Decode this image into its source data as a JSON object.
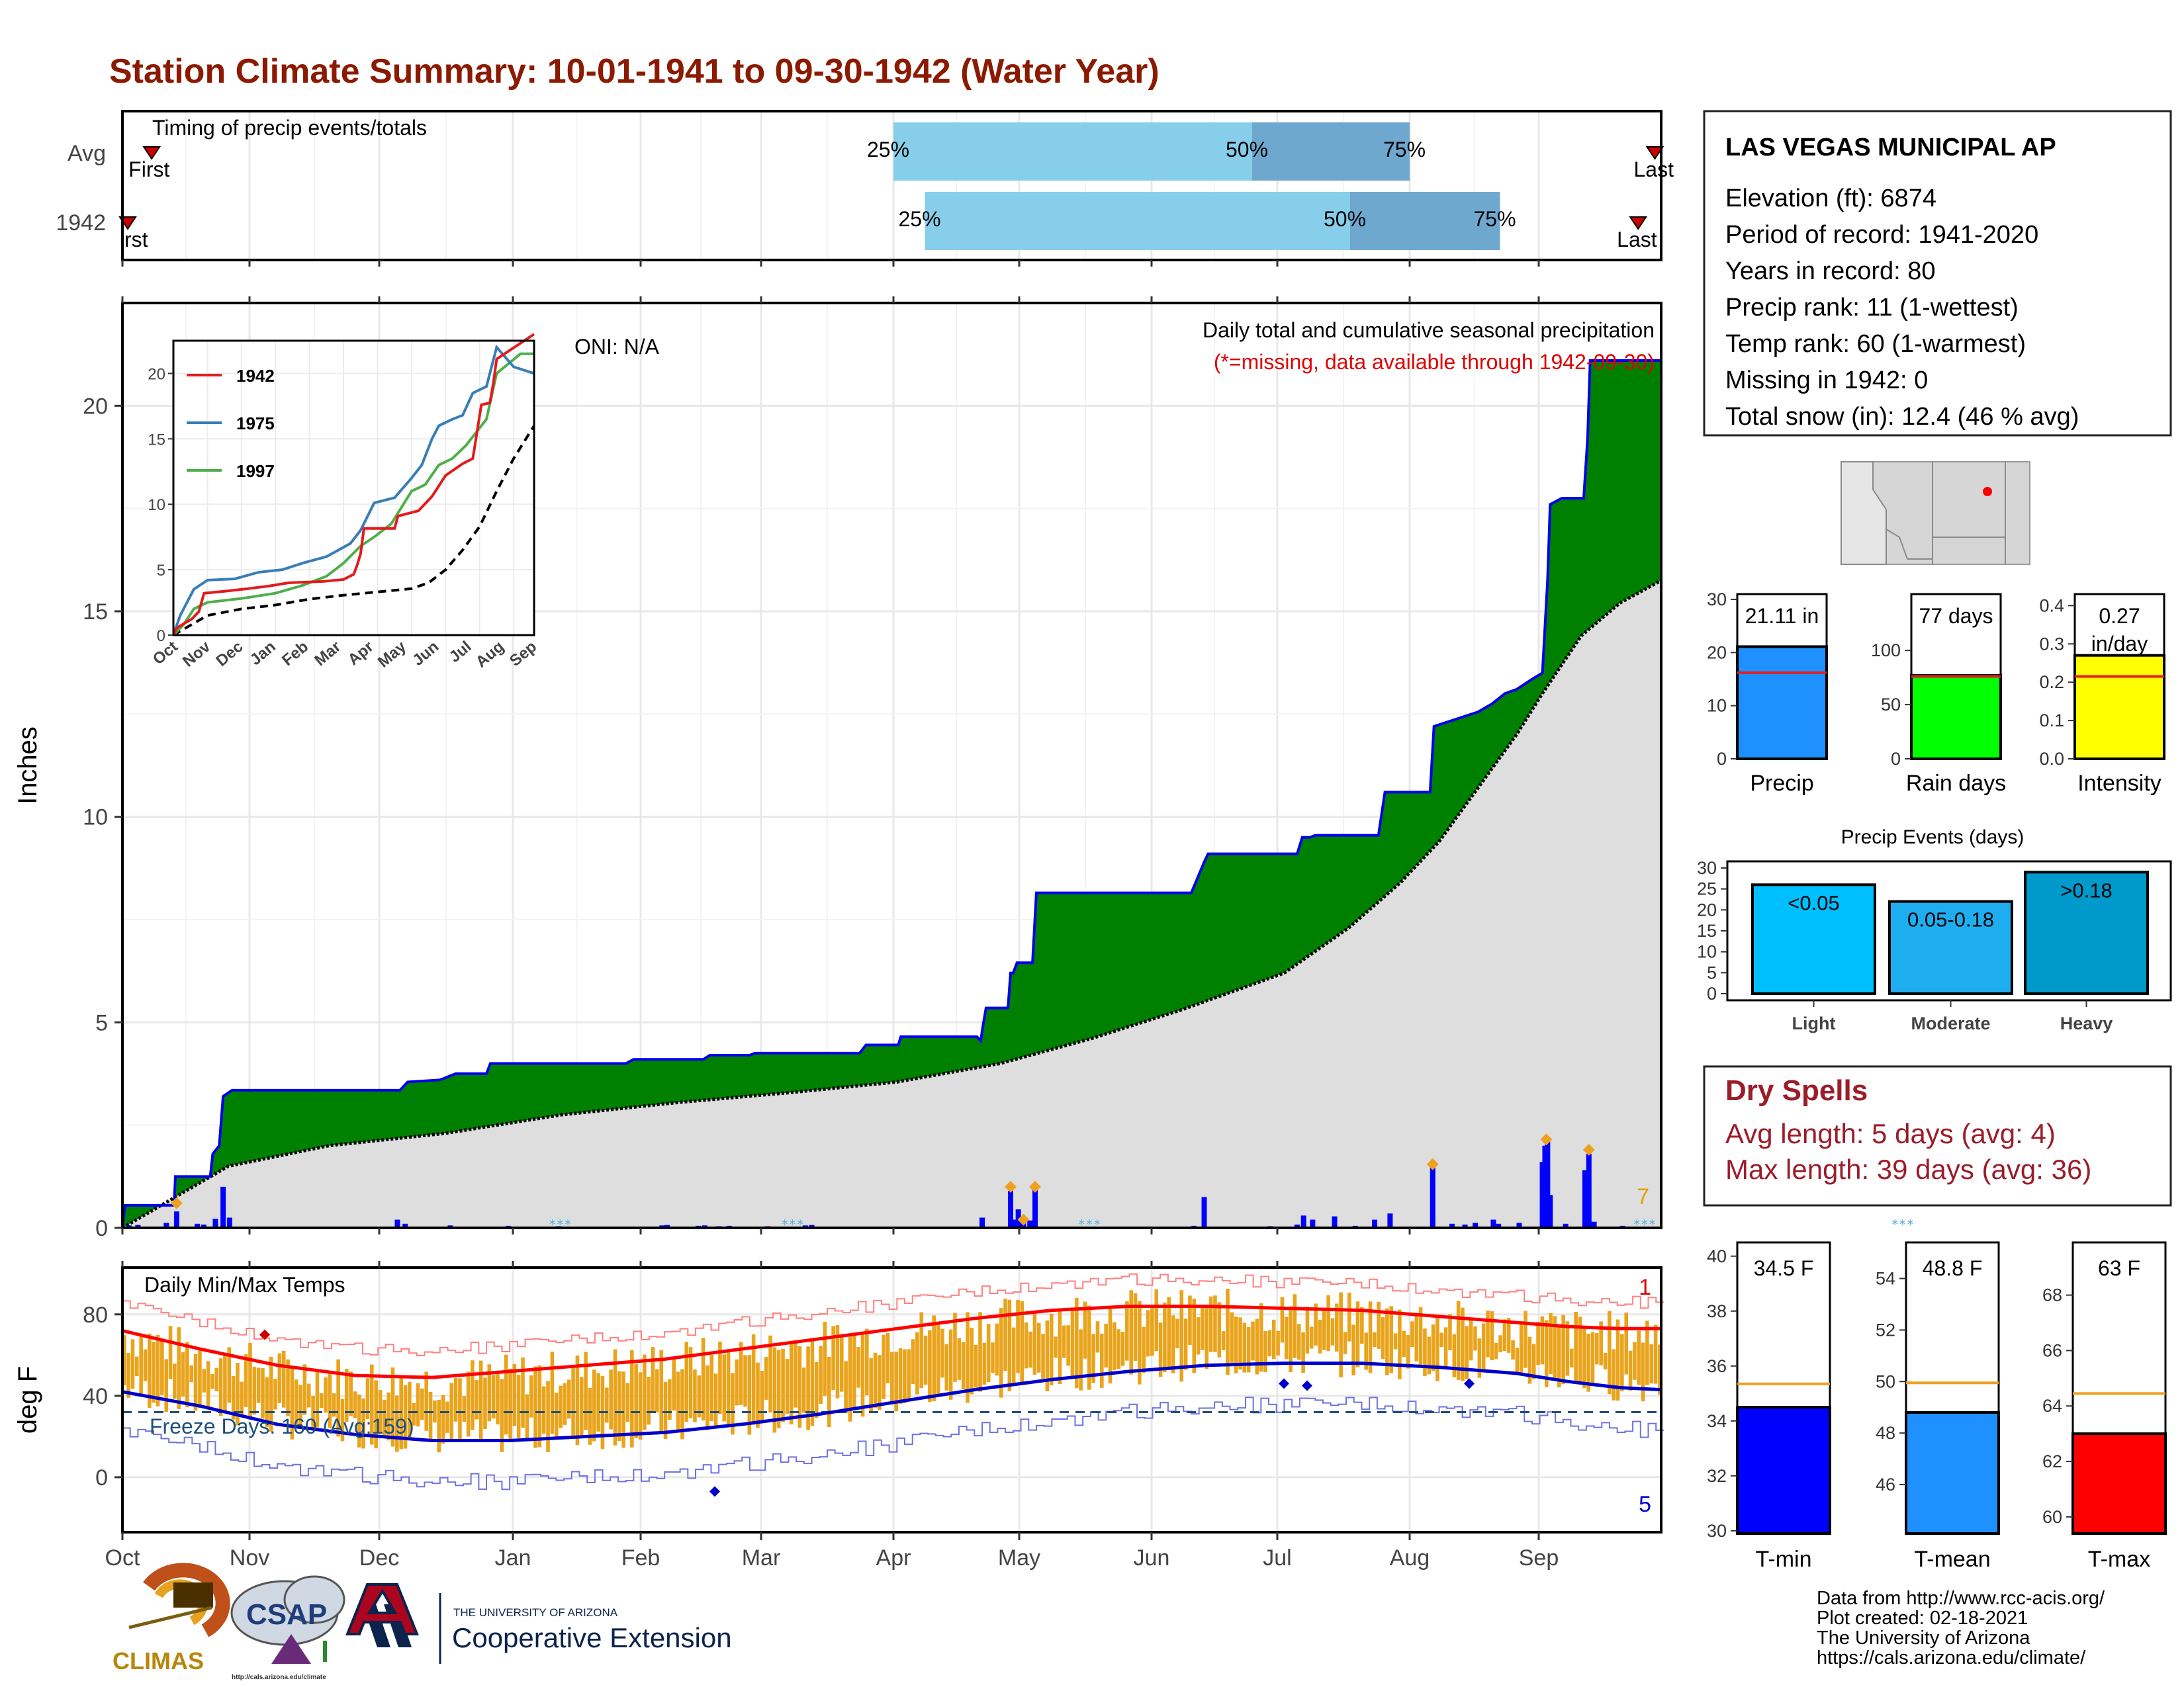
{
  "title": "Station Climate Summary: 10-01-1941 to 09-30-1942 (Water Year)",
  "colors": {
    "title": "#8b1a00",
    "accent_red": "#9b1d2a",
    "cum_fill": "#008000",
    "cum_line": "#0000ee",
    "avg_fill": "#dedede",
    "temp_bar": "#e9a41c",
    "tmax_line": "#ff0000",
    "tmin_line": "#0000cc",
    "timing_light": "#87ceeb",
    "timing_dark": "#6fa8cf"
  },
  "timing": {
    "title": "Timing of precip events/totals",
    "rows": [
      {
        "label": "Avg",
        "p25_month": 6.0,
        "p50_month": 8.8,
        "p75_month": 10.0,
        "first_month": 0.23,
        "last_month": 11.9
      },
      {
        "label": "1942",
        "p25_month": 6.25,
        "p50_month": 9.55,
        "p75_month": 10.7,
        "first_month": 0.0,
        "last_month": 11.77
      }
    ],
    "pct_labels": [
      "25%",
      "50%",
      "75%"
    ],
    "first_label": "First",
    "first_label_cut": "rst",
    "last_label": "Last"
  },
  "precip": {
    "ylabel": "Inches",
    "ylim": [
      0,
      22.5
    ],
    "yticks": [
      0,
      5,
      10,
      15,
      20
    ],
    "oni": "ONI: N/A",
    "desc1": "Daily total and cumulative seasonal precipitation",
    "desc2": "(*=missing, data available through 1942-09-30)",
    "count_label": "7",
    "cumulative_1942": [
      [
        0,
        0
      ],
      [
        2,
        0.55
      ],
      [
        40,
        0.55
      ],
      [
        41,
        1.25
      ],
      [
        68,
        1.25
      ],
      [
        70,
        1.8
      ],
      [
        75,
        2.0
      ],
      [
        78,
        3.2
      ],
      [
        85,
        3.35
      ],
      [
        215,
        3.35
      ],
      [
        221,
        3.55
      ],
      [
        246,
        3.6
      ],
      [
        258,
        3.75
      ],
      [
        282,
        3.75
      ],
      [
        285,
        4.0
      ],
      [
        390,
        4.0
      ],
      [
        396,
        4.1
      ],
      [
        399,
        4.1
      ],
      [
        450,
        4.1
      ],
      [
        455,
        4.2
      ],
      [
        486,
        4.2
      ],
      [
        490,
        4.25
      ],
      [
        571,
        4.25
      ],
      [
        576,
        4.45
      ],
      [
        601,
        4.45
      ],
      [
        603,
        4.65
      ],
      [
        662,
        4.65
      ],
      [
        665,
        4.55
      ],
      [
        666,
        4.8
      ],
      [
        669,
        5.35
      ],
      [
        686,
        5.35
      ],
      [
        688,
        6.2
      ],
      [
        690,
        6.2
      ],
      [
        693,
        6.45
      ],
      [
        705,
        6.45
      ],
      [
        708,
        8.15
      ],
      [
        828,
        8.15
      ],
      [
        838,
        8.9
      ],
      [
        841,
        9.1
      ],
      [
        910,
        9.1
      ],
      [
        914,
        9.5
      ],
      [
        920,
        9.5
      ],
      [
        924,
        9.55
      ],
      [
        973,
        9.55
      ],
      [
        978,
        10.6
      ],
      [
        1013,
        10.6
      ],
      [
        1016,
        12.2
      ],
      [
        1050,
        12.55
      ],
      [
        1061,
        12.75
      ],
      [
        1071,
        13.0
      ],
      [
        1080,
        13.1
      ],
      [
        1092,
        13.35
      ],
      [
        1100,
        13.5
      ],
      [
        1104,
        15.75
      ],
      [
        1106,
        17.6
      ],
      [
        1115,
        17.75
      ],
      [
        1132,
        17.75
      ],
      [
        1135,
        19.2
      ],
      [
        1137,
        21.1
      ],
      [
        1192,
        21.1
      ]
    ],
    "average_curve": [
      [
        0,
        0
      ],
      [
        82,
        1.5
      ],
      [
        160,
        2.0
      ],
      [
        250,
        2.3
      ],
      [
        340,
        2.75
      ],
      [
        430,
        3.05
      ],
      [
        520,
        3.3
      ],
      [
        600,
        3.55
      ],
      [
        680,
        4.0
      ],
      [
        750,
        4.6
      ],
      [
        820,
        5.3
      ],
      [
        900,
        6.2
      ],
      [
        950,
        7.3
      ],
      [
        990,
        8.4
      ],
      [
        1020,
        9.4
      ],
      [
        1050,
        10.7
      ],
      [
        1080,
        12.0
      ],
      [
        1100,
        13.0
      ],
      [
        1130,
        14.4
      ],
      [
        1160,
        15.2
      ],
      [
        1192,
        15.75
      ]
    ],
    "daily_bars": [
      [
        5,
        0.06
      ],
      [
        12,
        0.07
      ],
      [
        34,
        0.12
      ],
      [
        42,
        0.4
      ],
      [
        58,
        0.1
      ],
      [
        63,
        0.08
      ],
      [
        72,
        0.22
      ],
      [
        78,
        1.0
      ],
      [
        83,
        0.25
      ],
      [
        213,
        0.2
      ],
      [
        219,
        0.1
      ],
      [
        254,
        0.06
      ],
      [
        299,
        0.05
      ],
      [
        338,
        0.04
      ],
      [
        418,
        0.06
      ],
      [
        422,
        0.07
      ],
      [
        446,
        0.05
      ],
      [
        451,
        0.06
      ],
      [
        462,
        0.04
      ],
      [
        470,
        0.05
      ],
      [
        500,
        0.04
      ],
      [
        529,
        0.06
      ],
      [
        534,
        0.07
      ],
      [
        572,
        0.03
      ],
      [
        598,
        0.02
      ],
      [
        666,
        0.25
      ],
      [
        688,
        0.9
      ],
      [
        691,
        0.2
      ],
      [
        694,
        0.45
      ],
      [
        698,
        0.12
      ],
      [
        703,
        0.18
      ],
      [
        707,
        1.0
      ],
      [
        830,
        0.05
      ],
      [
        838,
        0.75
      ],
      [
        889,
        0.04
      ],
      [
        910,
        0.08
      ],
      [
        915,
        0.3
      ],
      [
        922,
        0.2
      ],
      [
        939,
        0.28
      ],
      [
        955,
        0.05
      ],
      [
        970,
        0.2
      ],
      [
        982,
        0.35
      ],
      [
        1015,
        1.5
      ],
      [
        1030,
        0.1
      ],
      [
        1040,
        0.08
      ],
      [
        1048,
        0.12
      ],
      [
        1062,
        0.2
      ],
      [
        1066,
        0.1
      ],
      [
        1082,
        0.12
      ],
      [
        1100,
        1.6
      ],
      [
        1102,
        2.0
      ],
      [
        1104,
        2.1
      ],
      [
        1106,
        0.8
      ],
      [
        1118,
        0.1
      ],
      [
        1133,
        1.4
      ],
      [
        1136,
        1.8
      ],
      [
        1140,
        0.15
      ],
      [
        1162,
        0.05
      ]
    ],
    "markers": [
      [
        42,
        0.6
      ],
      [
        688,
        1.0
      ],
      [
        698,
        0.2
      ],
      [
        707,
        1.0
      ],
      [
        1015,
        1.55
      ],
      [
        1103,
        2.15
      ],
      [
        1136,
        1.9
      ]
    ]
  },
  "inset": {
    "ylim": [
      0,
      22.5
    ],
    "yticks": [
      0,
      5,
      10,
      15,
      20
    ],
    "legend": [
      {
        "name": "1942",
        "color": "#e41a1c"
      },
      {
        "name": "1975",
        "color": "#377eb8"
      },
      {
        "name": "1997",
        "color": "#4daf4a"
      }
    ],
    "series": {
      "1942": [
        [
          0,
          0
        ],
        [
          0.1,
          0.55
        ],
        [
          0.55,
          1.25
        ],
        [
          0.75,
          1.8
        ],
        [
          0.9,
          3.2
        ],
        [
          1.5,
          3.35
        ],
        [
          2.2,
          3.55
        ],
        [
          2.8,
          3.75
        ],
        [
          3.4,
          4.0
        ],
        [
          4.4,
          4.1
        ],
        [
          5.0,
          4.25
        ],
        [
          5.3,
          4.65
        ],
        [
          5.4,
          5.35
        ],
        [
          5.5,
          6.2
        ],
        [
          5.6,
          8.15
        ],
        [
          6.5,
          8.15
        ],
        [
          6.6,
          9.1
        ],
        [
          7.2,
          9.5
        ],
        [
          7.6,
          10.6
        ],
        [
          8.0,
          12.2
        ],
        [
          8.5,
          13.1
        ],
        [
          8.8,
          13.5
        ],
        [
          9.05,
          17.6
        ],
        [
          9.3,
          17.75
        ],
        [
          9.4,
          19.2
        ],
        [
          9.5,
          21.1
        ],
        [
          10.6,
          23
        ]
      ],
      "1975": [
        [
          0,
          0
        ],
        [
          0.2,
          1.5
        ],
        [
          0.6,
          3.5
        ],
        [
          1.0,
          4.2
        ],
        [
          1.8,
          4.3
        ],
        [
          2.5,
          4.8
        ],
        [
          3.2,
          5.0
        ],
        [
          3.8,
          5.5
        ],
        [
          4.5,
          6.0
        ],
        [
          5.2,
          7.0
        ],
        [
          5.5,
          8.0
        ],
        [
          5.9,
          10.1
        ],
        [
          6.5,
          10.5
        ],
        [
          7.0,
          12.0
        ],
        [
          7.3,
          13.0
        ],
        [
          7.6,
          15.0
        ],
        [
          7.8,
          16.0
        ],
        [
          8.2,
          16.5
        ],
        [
          8.5,
          16.8
        ],
        [
          8.8,
          18.5
        ],
        [
          9.2,
          19.0
        ],
        [
          9.5,
          22.0
        ],
        [
          10.0,
          20.5
        ],
        [
          10.6,
          20.0
        ]
      ],
      "1997": [
        [
          0,
          0
        ],
        [
          0.3,
          0.8
        ],
        [
          0.6,
          2.0
        ],
        [
          1.0,
          2.5
        ],
        [
          2.0,
          2.8
        ],
        [
          3.0,
          3.2
        ],
        [
          3.8,
          3.8
        ],
        [
          4.5,
          4.5
        ],
        [
          5.0,
          5.5
        ],
        [
          5.5,
          6.8
        ],
        [
          5.9,
          7.5
        ],
        [
          6.4,
          8.5
        ],
        [
          7.0,
          11.0
        ],
        [
          7.4,
          11.5
        ],
        [
          7.8,
          13.0
        ],
        [
          8.2,
          13.5
        ],
        [
          8.6,
          14.5
        ],
        [
          8.9,
          15.5
        ],
        [
          9.2,
          16.5
        ],
        [
          9.5,
          20.0
        ],
        [
          10.2,
          21.5
        ],
        [
          10.6,
          21.5
        ]
      ],
      "average": [
        [
          0,
          0
        ],
        [
          1,
          1.5
        ],
        [
          2,
          2.0
        ],
        [
          3,
          2.3
        ],
        [
          4,
          2.75
        ],
        [
          5,
          3.05
        ],
        [
          6,
          3.3
        ],
        [
          7,
          3.55
        ],
        [
          7.5,
          4.0
        ],
        [
          8,
          5.0
        ],
        [
          8.5,
          6.5
        ],
        [
          9,
          8.3
        ],
        [
          9.5,
          11.0
        ],
        [
          10,
          13.5
        ],
        [
          10.6,
          16.0
        ]
      ]
    },
    "xticks": [
      "Oct",
      "Nov",
      "Dec",
      "Jan",
      "Feb",
      "Mar",
      "Apr",
      "May",
      "Jun",
      "Jul",
      "Aug",
      "Sep"
    ]
  },
  "temps": {
    "ylabel": "deg F",
    "title": "Daily Min/Max Temps",
    "freeze_label": "Freeze Days: 160 (Avg:159)",
    "freeze_temp": 32,
    "ylim": [
      -27,
      103
    ],
    "yticks": [
      0,
      40,
      80
    ],
    "record_high_count": "1",
    "record_low_count": "5",
    "normal_max": [
      [
        0,
        72
      ],
      [
        60,
        63
      ],
      [
        120,
        55
      ],
      [
        180,
        50
      ],
      [
        240,
        49
      ],
      [
        300,
        52
      ],
      [
        360,
        55
      ],
      [
        420,
        58
      ],
      [
        480,
        63
      ],
      [
        540,
        68
      ],
      [
        600,
        73
      ],
      [
        660,
        78
      ],
      [
        720,
        82
      ],
      [
        780,
        84
      ],
      [
        840,
        84
      ],
      [
        900,
        83
      ],
      [
        960,
        82
      ],
      [
        1020,
        79
      ],
      [
        1080,
        76
      ],
      [
        1120,
        74
      ],
      [
        1160,
        73
      ],
      [
        1192,
        73
      ]
    ],
    "normal_min": [
      [
        0,
        42
      ],
      [
        60,
        35
      ],
      [
        120,
        26
      ],
      [
        180,
        21
      ],
      [
        240,
        18
      ],
      [
        300,
        18
      ],
      [
        360,
        20
      ],
      [
        420,
        22
      ],
      [
        480,
        26
      ],
      [
        540,
        31
      ],
      [
        600,
        37
      ],
      [
        660,
        43
      ],
      [
        720,
        48
      ],
      [
        780,
        52
      ],
      [
        840,
        55
      ],
      [
        900,
        56
      ],
      [
        960,
        56
      ],
      [
        1020,
        54
      ],
      [
        1080,
        51
      ],
      [
        1120,
        47
      ],
      [
        1160,
        44
      ],
      [
        1192,
        43
      ]
    ],
    "record_high_offset": 13,
    "record_low_offset": -20
  },
  "x_months": [
    "Oct",
    "Nov",
    "Dec",
    "Jan",
    "Feb",
    "Mar",
    "Apr",
    "May",
    "Jun",
    "Jul",
    "Aug",
    "Sep"
  ],
  "station": {
    "name": "LAS VEGAS MUNICIPAL AP",
    "lines": [
      "Elevation (ft): 6874",
      "Period of record: 1941-2020",
      "Years in record: 80",
      "Precip rank: 11 (1-wettest)",
      "Temp rank: 60 (1-warmest)",
      "Missing in 1942: 0",
      "Total snow (in): 12.4 (46 % avg)"
    ]
  },
  "summary_bars": [
    {
      "label": "Precip",
      "value": 21.11,
      "value_label": "21.11 in",
      "avg": 16.2,
      "ymax": 31,
      "yticks": [
        0,
        10,
        20,
        30
      ],
      "color": "#1e90ff"
    },
    {
      "label": "Rain days",
      "value": 77,
      "value_label": "77 days",
      "avg": 76,
      "ymax": 152,
      "yticks": [
        0,
        50,
        100
      ],
      "color": "#00ff00"
    },
    {
      "label": "Intensity",
      "value": 0.27,
      "value_label": "0.27\nin/day",
      "avg": 0.215,
      "ymax": 0.43,
      "yticks": [
        0.0,
        0.1,
        0.2,
        0.3,
        0.4
      ],
      "color": "#ffff00"
    }
  ],
  "events": {
    "title": "Precip Events (days)",
    "ymax": 30,
    "yticks": [
      0,
      5,
      10,
      15,
      20,
      25,
      30
    ],
    "bars": [
      {
        "label": "Light",
        "value": 26,
        "inner": "<0.05",
        "color": "#00bfff"
      },
      {
        "label": "Moderate",
        "value": 22,
        "inner": "0.05-0.18",
        "color": "#1eaef0"
      },
      {
        "label": "Heavy",
        "value": 29,
        "inner": ">0.18",
        "color": "#0099cc"
      }
    ]
  },
  "dry_spells": {
    "title": "Dry Spells",
    "avg_length": "Avg length: 5 days (avg: 4)",
    "max_length": "Max length: 39 days (avg: 36)"
  },
  "temp_bars": [
    {
      "label": "T-min",
      "value": 34.5,
      "value_label": "34.5 F",
      "avg": 35.35,
      "ylim": [
        29.9,
        40.5
      ],
      "yticks": [
        30,
        32,
        34,
        36,
        38,
        40
      ],
      "color": "#0000ff"
    },
    {
      "label": "T-mean",
      "value": 48.8,
      "value_label": "48.8 F",
      "avg": 49.95,
      "ylim": [
        44.1,
        55.4
      ],
      "yticks": [
        46,
        48,
        50,
        52,
        54
      ],
      "color": "#1e90ff"
    },
    {
      "label": "T-max",
      "value": 63,
      "value_label": "63 F",
      "avg": 64.45,
      "ylim": [
        59.4,
        69.9
      ],
      "yticks": [
        60,
        62,
        64,
        66,
        68
      ],
      "color": "#ff0000"
    }
  ],
  "credits": {
    "line1": "Data from http://www.rcc-acis.org/",
    "line2": "Plot created: 02-18-2021",
    "line3": "The University of Arizona",
    "line4": "https://cals.arizona.edu/climate/"
  },
  "logos": {
    "climas": "CLIMAS",
    "csap": "CSAP",
    "csap_url": "http://cals.arizona.edu/climate",
    "ua_small": "THE UNIVERSITY OF ARIZONA",
    "ua_large": "Cooperative Extension"
  }
}
